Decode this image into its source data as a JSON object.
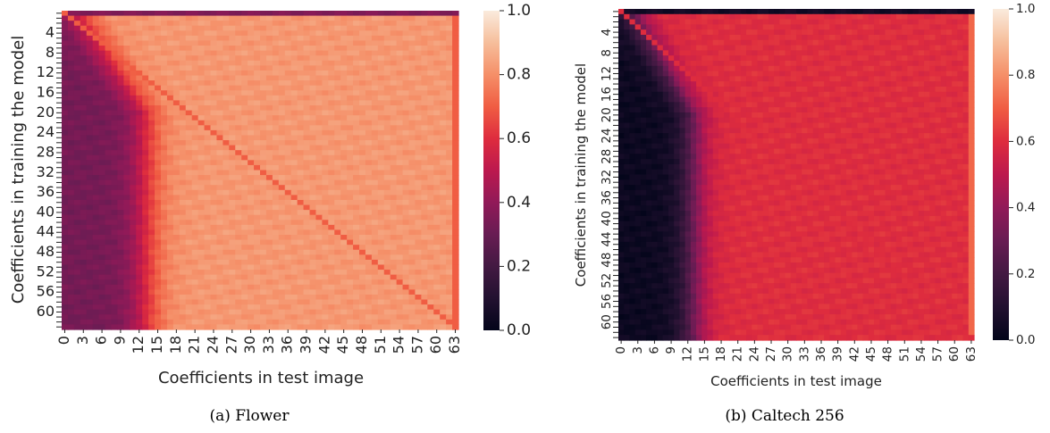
{
  "chart_data": [
    {
      "type": "heatmap",
      "caption": "(a) Flower",
      "xlabel": "Coefficients in test image",
      "ylabel": "Coefficients in training the model",
      "x_ticks": [
        "0",
        "3",
        "6",
        "9",
        "12",
        "15",
        "18",
        "21",
        "24",
        "27",
        "30",
        "33",
        "36",
        "39",
        "42",
        "45",
        "48",
        "51",
        "54",
        "57",
        "60",
        "63"
      ],
      "y_ticks": [
        "4",
        "8",
        "12",
        "16",
        "20",
        "24",
        "28",
        "32",
        "36",
        "40",
        "44",
        "48",
        "52",
        "56",
        "60"
      ],
      "colorbar_ticks": [
        "0.0",
        "0.2",
        "0.4",
        "0.6",
        "0.8",
        "1.0"
      ],
      "vmin": 0.0,
      "vmax": 1.0,
      "grid": false,
      "size": 64,
      "pattern": {
        "high_level": 0.82,
        "low_level": 0.33,
        "first_row_level": 0.36,
        "diagonal_level": 0.7,
        "edge_column_level": 0.7
      }
    },
    {
      "type": "heatmap",
      "caption": "(b) Caltech 256",
      "xlabel": "Coefficients in test image",
      "ylabel": "Coefficients in training the model",
      "x_ticks": [
        "0",
        "3",
        "6",
        "9",
        "12",
        "15",
        "18",
        "21",
        "24",
        "27",
        "30",
        "33",
        "36",
        "39",
        "42",
        "45",
        "48",
        "51",
        "54",
        "57",
        "60",
        "63"
      ],
      "y_ticks": [
        "4",
        "8",
        "12",
        "16",
        "20",
        "24",
        "28",
        "32",
        "36",
        "40",
        "44",
        "48",
        "52",
        "56",
        "60"
      ],
      "colorbar_ticks": [
        "0.0",
        "0.2",
        "0.4",
        "0.6",
        "0.8",
        "1.0"
      ],
      "vmin": 0.0,
      "vmax": 1.0,
      "grid": false,
      "size": 64,
      "pattern": {
        "high_level": 0.6,
        "low_level": 0.03,
        "first_row_level": 0.05,
        "diagonal_level": 0.6,
        "edge_column_level": 0.72
      }
    }
  ]
}
